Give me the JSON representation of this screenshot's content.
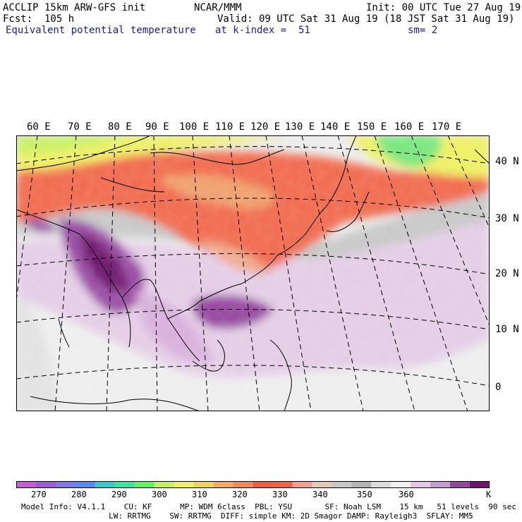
{
  "header": {
    "title": "ACCLIP 15km ARW-GFS init",
    "fcst": "Fcst:  105 h",
    "field": "Equivalent potential temperature",
    "center": "NCAR/MMM",
    "init": "Init: 00 UTC Tue 27 Aug 19",
    "valid": "Valid: 09 UTC Sat 31 Aug 19 (18 JST Sat 31 Aug 19)",
    "level": "at k-index =  51",
    "smooth": "sm= 2"
  },
  "map": {
    "lon_labels": [
      "60 E",
      "70 E",
      "80 E",
      "90 E",
      "100 E",
      "110 E",
      "120 E",
      "130 E",
      "140 E",
      "150 E",
      "160 E",
      "170 E"
    ],
    "lat_labels": [
      "40 N",
      "30 N",
      "20 N",
      "10 N",
      "0"
    ]
  },
  "colorbar": {
    "unit": "K",
    "labels": [
      "270",
      "280",
      "290",
      "300",
      "310",
      "320",
      "330",
      "340",
      "350",
      "360"
    ],
    "colors": [
      "#c85ad2",
      "#a05ad2",
      "#8278e6",
      "#5a8cf0",
      "#3cc8c8",
      "#3ce6a0",
      "#64f064",
      "#c8f064",
      "#f0f064",
      "#f0d264",
      "#f0aa64",
      "#f08c5a",
      "#f05a46",
      "#f06446",
      "#f0a08c",
      "#e6c8b4",
      "#c8c8c8",
      "#b4b4b4",
      "#dcdcdc",
      "#f0f0f0",
      "#e6c8e6",
      "#c89ad2",
      "#9646a0",
      "#6e146e"
    ]
  },
  "footer": {
    "line1": "Model Info: V4.1.1    CU: KF      MP: WDM 6class  PBL: YSU       SF: Noah LSM    15 km   51 levels  90 sec",
    "line2": "     LW: RRTMG    SW: RRTMG  DIFF: simple KM: 2D Smagor DAMP: Rayleigh3  SFLAY: MM5"
  }
}
